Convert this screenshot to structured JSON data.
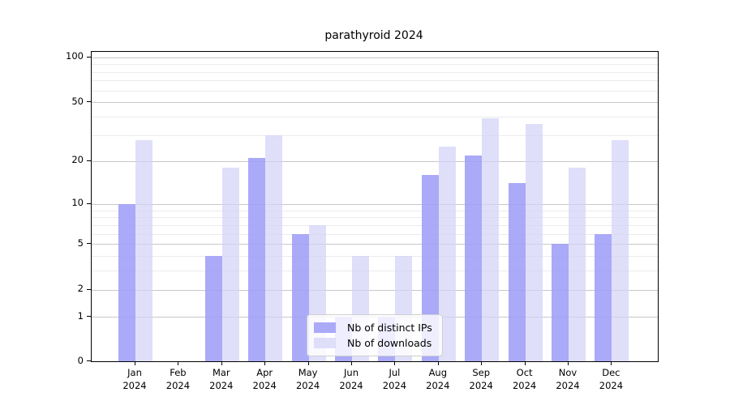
{
  "chart_data": {
    "type": "bar",
    "title": "parathyroid 2024",
    "categories": [
      "Jan",
      "Feb",
      "Mar",
      "Apr",
      "May",
      "Jun",
      "Jul",
      "Aug",
      "Sep",
      "Oct",
      "Nov",
      "Dec"
    ],
    "x_tick_second_line": "2024",
    "series": [
      {
        "name": "Nb of distinct IPs",
        "color": "#9e9ef7e0",
        "values": [
          10,
          0,
          4,
          21,
          6,
          1,
          1,
          16,
          22,
          14,
          5,
          6
        ]
      },
      {
        "name": "Nb of downloads",
        "color": "#d2d2f8b8",
        "values": [
          28,
          0,
          18,
          30,
          7,
          4,
          4,
          25,
          39,
          36,
          18,
          28
        ]
      }
    ],
    "ylabel": "",
    "xlabel": "",
    "y_axis": {
      "scale": "log(v+1)",
      "tick_values": [
        100,
        50,
        20,
        10,
        5,
        2,
        1,
        0
      ],
      "minor_gridline_values": [
        3,
        4,
        6,
        7,
        8,
        9,
        30,
        40,
        60,
        70,
        80,
        90
      ],
      "major_grid_color": "#c8c8c8",
      "minor_grid_color": "#ebebeb"
    },
    "ylim": [
      0,
      110
    ],
    "grid": true,
    "legend_position": "bottom-center"
  }
}
